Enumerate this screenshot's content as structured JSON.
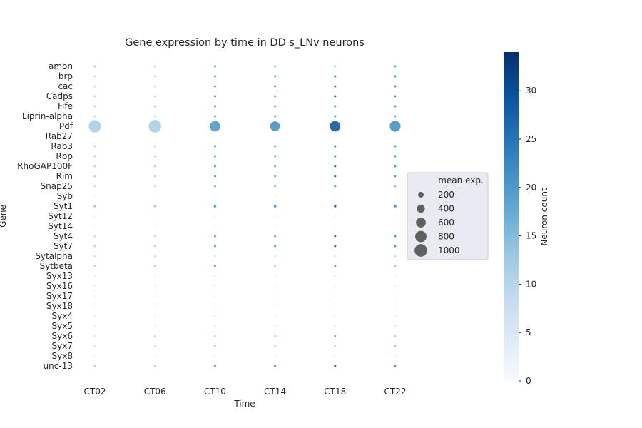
{
  "chart_data": {
    "type": "scatter",
    "title": "Gene expression by time in DD s_LNv neurons",
    "xlabel": "Time",
    "ylabel": "Gene",
    "x_categories": [
      "CT02",
      "CT06",
      "CT10",
      "CT14",
      "CT18",
      "CT22"
    ],
    "y_categories": [
      "amon",
      "brp",
      "cac",
      "Cadps",
      "Fife",
      "Liprin-alpha",
      "Pdf",
      "Rab27",
      "Rab3",
      "Rbp",
      "RhoGAP100F",
      "Rim",
      "Snap25",
      "Syb",
      "Syt1",
      "Syt12",
      "Syt14",
      "Syt4",
      "Syt7",
      "Sytalpha",
      "Sytbeta",
      "Syx13",
      "Syx16",
      "Syx17",
      "Syx18",
      "Syx4",
      "Syx5",
      "Syx6",
      "Syx7",
      "Syx8",
      "unc-13"
    ],
    "points_note": "each row lists [neuron_count, mean_exp] per time point",
    "points": {
      "amon": [
        [
          12,
          30
        ],
        [
          11,
          30
        ],
        [
          20,
          30
        ],
        [
          18,
          30
        ],
        [
          15,
          30
        ],
        [
          20,
          30
        ]
      ],
      "brp": [
        [
          10,
          30
        ],
        [
          10,
          30
        ],
        [
          20,
          30
        ],
        [
          20,
          30
        ],
        [
          28,
          30
        ],
        [
          22,
          30
        ]
      ],
      "cac": [
        [
          10,
          30
        ],
        [
          10,
          30
        ],
        [
          22,
          30
        ],
        [
          22,
          30
        ],
        [
          30,
          30
        ],
        [
          24,
          30
        ]
      ],
      "Cadps": [
        [
          10,
          30
        ],
        [
          10,
          30
        ],
        [
          22,
          30
        ],
        [
          20,
          30
        ],
        [
          30,
          30
        ],
        [
          22,
          30
        ]
      ],
      "Fife": [
        [
          11,
          30
        ],
        [
          12,
          30
        ],
        [
          22,
          30
        ],
        [
          20,
          30
        ],
        [
          24,
          30
        ],
        [
          22,
          30
        ]
      ],
      "Liprin-alpha": [
        [
          10,
          30
        ],
        [
          10,
          30
        ],
        [
          20,
          30
        ],
        [
          20,
          30
        ],
        [
          24,
          30
        ],
        [
          18,
          30
        ]
      ],
      "Pdf": [
        [
          12,
          950
        ],
        [
          12,
          1000
        ],
        [
          21,
          700
        ],
        [
          22,
          600
        ],
        [
          30,
          700
        ],
        [
          22,
          750
        ]
      ],
      "Rab27": [
        [
          1,
          20
        ],
        [
          1,
          20
        ],
        [
          2,
          20
        ],
        [
          1,
          20
        ],
        [
          2,
          20
        ],
        [
          1,
          20
        ]
      ],
      "Rab3": [
        [
          11,
          30
        ],
        [
          11,
          30
        ],
        [
          22,
          30
        ],
        [
          20,
          30
        ],
        [
          30,
          30
        ],
        [
          22,
          30
        ]
      ],
      "Rbp": [
        [
          11,
          30
        ],
        [
          11,
          30
        ],
        [
          22,
          30
        ],
        [
          20,
          30
        ],
        [
          29,
          30
        ],
        [
          22,
          30
        ]
      ],
      "RhoGAP100F": [
        [
          11,
          30
        ],
        [
          11,
          30
        ],
        [
          22,
          30
        ],
        [
          20,
          30
        ],
        [
          29,
          30
        ],
        [
          22,
          30
        ]
      ],
      "Rim": [
        [
          12,
          30
        ],
        [
          11,
          30
        ],
        [
          22,
          30
        ],
        [
          20,
          30
        ],
        [
          30,
          30
        ],
        [
          22,
          30
        ]
      ],
      "Snap25": [
        [
          10,
          30
        ],
        [
          9,
          30
        ],
        [
          18,
          30
        ],
        [
          16,
          30
        ],
        [
          22,
          30
        ],
        [
          15,
          30
        ]
      ],
      "Syb": [
        [
          2,
          20
        ],
        [
          0,
          20
        ],
        [
          1,
          20
        ],
        [
          1,
          20
        ],
        [
          1,
          20
        ],
        [
          1,
          20
        ]
      ],
      "Syt1": [
        [
          13,
          40
        ],
        [
          13,
          40
        ],
        [
          22,
          40
        ],
        [
          24,
          40
        ],
        [
          30,
          40
        ],
        [
          24,
          40
        ]
      ],
      "Syt12": [
        [
          3,
          20
        ],
        [
          2,
          20
        ],
        [
          4,
          20
        ],
        [
          4,
          20
        ],
        [
          4,
          20
        ],
        [
          2,
          20
        ]
      ],
      "Syt14": [
        [
          1,
          20
        ],
        [
          1,
          20
        ],
        [
          2,
          20
        ],
        [
          1,
          20
        ],
        [
          1,
          20
        ],
        [
          1,
          20
        ]
      ],
      "Syt4": [
        [
          10,
          30
        ],
        [
          10,
          30
        ],
        [
          22,
          30
        ],
        [
          20,
          30
        ],
        [
          30,
          30
        ],
        [
          23,
          30
        ]
      ],
      "Syt7": [
        [
          11,
          30
        ],
        [
          11,
          30
        ],
        [
          22,
          30
        ],
        [
          22,
          30
        ],
        [
          30,
          30
        ],
        [
          22,
          30
        ]
      ],
      "Sytalpha": [
        [
          8,
          30
        ],
        [
          8,
          30
        ],
        [
          8,
          30
        ],
        [
          6,
          30
        ],
        [
          8,
          30
        ],
        [
          10,
          30
        ]
      ],
      "Sytbeta": [
        [
          11,
          30
        ],
        [
          11,
          30
        ],
        [
          22,
          30
        ],
        [
          13,
          30
        ],
        [
          22,
          30
        ],
        [
          13,
          30
        ]
      ],
      "Syx13": [
        [
          3,
          20
        ],
        [
          3,
          20
        ],
        [
          5,
          20
        ],
        [
          4,
          20
        ],
        [
          7,
          20
        ],
        [
          3,
          20
        ]
      ],
      "Syx16": [
        [
          3,
          20
        ],
        [
          3,
          20
        ],
        [
          4,
          20
        ],
        [
          3,
          20
        ],
        [
          4,
          20
        ],
        [
          3,
          20
        ]
      ],
      "Syx17": [
        [
          3,
          20
        ],
        [
          3,
          20
        ],
        [
          4,
          20
        ],
        [
          3,
          20
        ],
        [
          3,
          20
        ],
        [
          2,
          20
        ]
      ],
      "Syx18": [
        [
          1,
          20
        ],
        [
          1,
          20
        ],
        [
          2,
          20
        ],
        [
          1,
          20
        ],
        [
          1,
          20
        ],
        [
          1,
          20
        ]
      ],
      "Syx4": [
        [
          4,
          20
        ],
        [
          3,
          20
        ],
        [
          5,
          20
        ],
        [
          4,
          20
        ],
        [
          3,
          20
        ],
        [
          4,
          20
        ]
      ],
      "Syx5": [
        [
          4,
          20
        ],
        [
          3,
          20
        ],
        [
          6,
          20
        ],
        [
          5,
          20
        ],
        [
          5,
          20
        ],
        [
          5,
          20
        ]
      ],
      "Syx6": [
        [
          6,
          25
        ],
        [
          9,
          25
        ],
        [
          12,
          25
        ],
        [
          12,
          25
        ],
        [
          22,
          25
        ],
        [
          12,
          25
        ]
      ],
      "Syx7": [
        [
          8,
          25
        ],
        [
          8,
          25
        ],
        [
          14,
          25
        ],
        [
          12,
          25
        ],
        [
          12,
          25
        ],
        [
          14,
          25
        ]
      ],
      "Syx8": [
        [
          2,
          20
        ],
        [
          2,
          20
        ],
        [
          4,
          20
        ],
        [
          4,
          20
        ],
        [
          4,
          20
        ],
        [
          2,
          20
        ]
      ],
      "unc-13": [
        [
          12,
          30
        ],
        [
          12,
          30
        ],
        [
          22,
          30
        ],
        [
          23,
          30
        ],
        [
          30,
          30
        ],
        [
          22,
          30
        ]
      ]
    },
    "size_legend": {
      "title": "mean exp.",
      "values": [
        200,
        400,
        600,
        800,
        1000
      ],
      "placement": "right"
    },
    "colorbar": {
      "label": "Neuron count",
      "range": [
        0,
        34
      ],
      "ticks": [
        0,
        5,
        10,
        15,
        20,
        25,
        30
      ],
      "colormap": "Blues",
      "low_color": "#f7fbff",
      "high_color": "#08306b"
    },
    "grid": false,
    "plot_background": "#ffffff",
    "legend_background": "#eaeaf2"
  }
}
